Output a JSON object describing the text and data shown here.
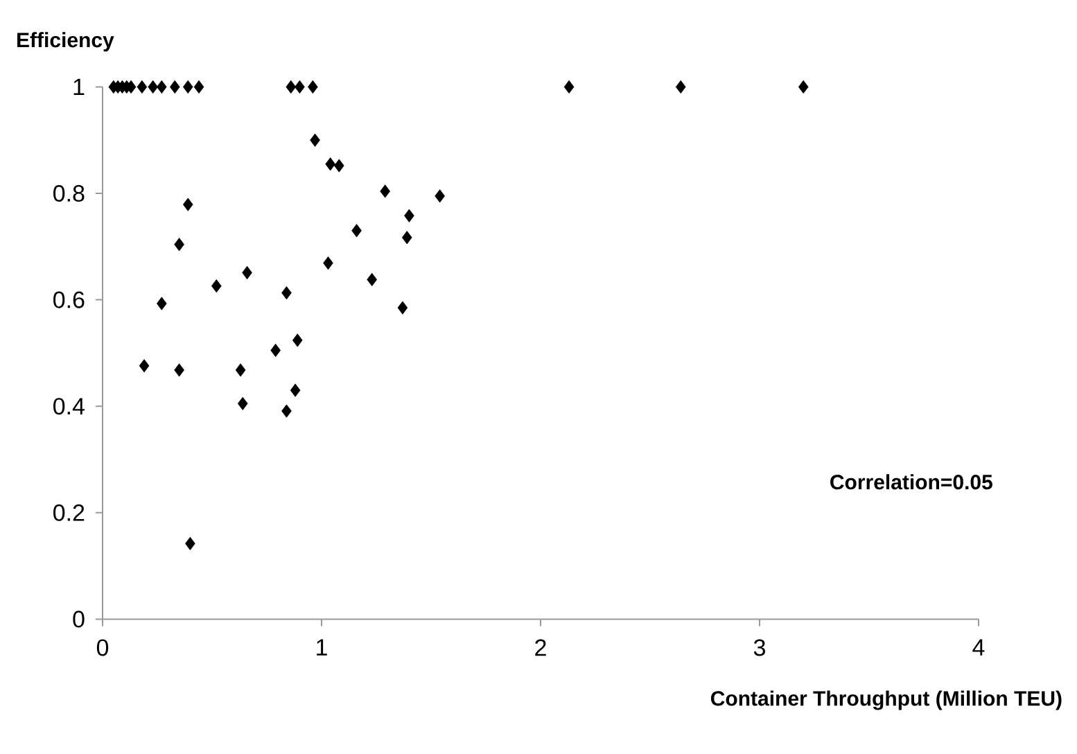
{
  "chart_data": {
    "type": "scatter",
    "xlabel": "Container Throughput (Million TEU)",
    "ylabel": "Efficiency",
    "annotations": [
      "Correlation=0.05"
    ],
    "marker": "diamond",
    "xlim": [
      0,
      4
    ],
    "ylim": [
      0,
      1
    ],
    "xticks": [
      0,
      1,
      2,
      3,
      4
    ],
    "yticks": [
      0,
      0.2,
      0.4,
      0.6,
      0.8,
      1
    ],
    "series": [
      {
        "color": "#000000",
        "x": [
          0.05,
          0.07,
          0.09,
          0.11,
          0.13,
          0.18,
          0.23,
          0.27,
          0.33,
          0.39,
          0.44,
          0.86,
          0.9,
          0.96,
          2.13,
          2.64,
          3.2,
          0.97,
          1.04,
          1.08,
          1.29,
          1.54,
          1.4,
          0.39,
          0.35,
          1.16,
          1.39,
          1.03,
          0.52,
          0.66,
          1.23,
          0.84,
          1.37,
          0.27,
          0.89,
          0.79,
          0.19,
          0.35,
          0.63,
          0.88,
          0.64,
          0.84,
          0.4
        ],
        "values": [
          1,
          1,
          1,
          1,
          1,
          1,
          1,
          1,
          1,
          1,
          1,
          1,
          1,
          1,
          1,
          1,
          1,
          0.9,
          0.855,
          0.852,
          0.804,
          0.795,
          0.758,
          0.779,
          0.704,
          0.73,
          0.717,
          0.669,
          0.626,
          0.651,
          0.638,
          0.613,
          0.585,
          0.593,
          0.524,
          0.505,
          0.476,
          0.468,
          0.468,
          0.43,
          0.405,
          0.391,
          0.142
        ]
      }
    ]
  }
}
